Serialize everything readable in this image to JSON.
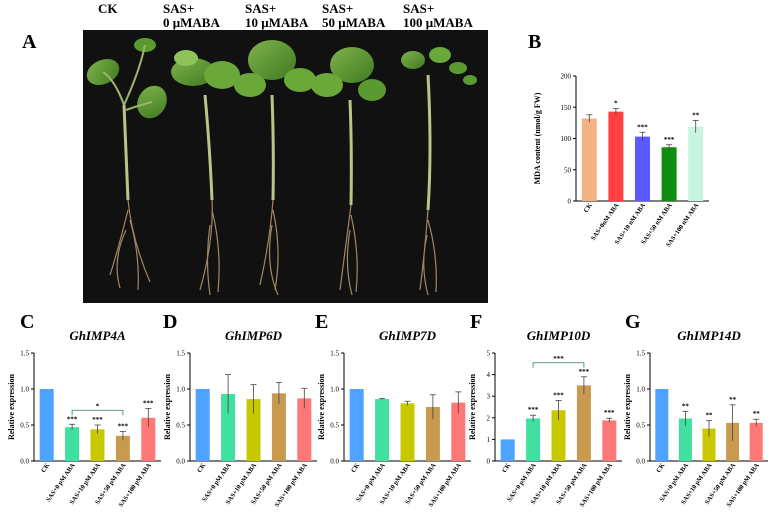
{
  "photo": {
    "labels": [
      "CK",
      "SAS+\n0 μMABA",
      "SAS+\n10 μMABA",
      "SAS+\n50 μMABA",
      "SAS+\n100 μMABA"
    ]
  },
  "colors": {
    "B": [
      "#f4b183",
      "#ff4040",
      "#5b5bff",
      "#108c10",
      "#c8f5e0"
    ],
    "C": [
      "#4da3ff",
      "#40e0a0",
      "#c8c800",
      "#c89a50",
      "#ff7878"
    ]
  },
  "chart_data": [
    {
      "panel": "A",
      "letter": "A",
      "type": "photo"
    },
    {
      "panel": "B",
      "letter": "B",
      "type": "bar",
      "title": "",
      "ylabel": "MDA content (nmol/g FW)",
      "ylim": [
        0,
        200
      ],
      "yticks": [
        0,
        50,
        100,
        150,
        200
      ],
      "categories": [
        "CK",
        "SAS+0nM ABA",
        "SAS+10 nM ABA",
        "SAS+50 nM ABA",
        "SAS+100 nM ABA"
      ],
      "values": [
        132,
        143,
        103,
        86,
        119
      ],
      "errors": [
        6,
        5,
        7,
        4,
        10
      ],
      "significance": [
        "",
        "*",
        "***",
        "***",
        "**"
      ]
    },
    {
      "panel": "C",
      "letter": "C",
      "type": "bar",
      "title": "GhIMP4A",
      "ylabel": "Relative expression",
      "ylim": [
        0,
        1.5
      ],
      "yticks": [
        0.0,
        0.5,
        1.0,
        1.5
      ],
      "tickdec": 1,
      "categories": [
        "CK",
        "SAS+0 pM ABA",
        "SAS+10 pM ABA",
        "SAS+50 pM ABA",
        "SAS+100 pM ABA"
      ],
      "values": [
        1.0,
        0.47,
        0.44,
        0.35,
        0.6
      ],
      "errors": [
        0,
        0.04,
        0.06,
        0.06,
        0.13
      ],
      "significance": [
        "",
        "***",
        "***",
        "***",
        "***"
      ],
      "bracket": {
        "from": 1,
        "to": 3,
        "label": "*"
      }
    },
    {
      "panel": "D",
      "letter": "D",
      "type": "bar",
      "title": "GhIMP6D",
      "ylabel": "Relative expression",
      "ylim": [
        0,
        1.5
      ],
      "yticks": [
        0.0,
        0.5,
        1.0,
        1.5
      ],
      "tickdec": 1,
      "categories": [
        "CK",
        "SAS+0 pM ABA",
        "SAS+10 pM ABA",
        "SAS+50 pM ABA",
        "SAS+100 pM ABA"
      ],
      "values": [
        1.0,
        0.93,
        0.86,
        0.94,
        0.87
      ],
      "errors": [
        0,
        0.27,
        0.2,
        0.15,
        0.14
      ],
      "significance": [
        "",
        "",
        "",
        "",
        ""
      ]
    },
    {
      "panel": "E",
      "letter": "E",
      "type": "bar",
      "title": "GhIMP7D",
      "ylabel": "Relative expression",
      "ylim": [
        0,
        1.5
      ],
      "yticks": [
        0.0,
        0.5,
        1.0,
        1.5
      ],
      "tickdec": 1,
      "categories": [
        "CK",
        "SAS+0 pM ABA",
        "SAS+10 pM ABA",
        "SAS+50 pM ABA",
        "SAS+100 pM ABA"
      ],
      "values": [
        1.0,
        0.86,
        0.8,
        0.75,
        0.81
      ],
      "errors": [
        0,
        0.01,
        0.03,
        0.17,
        0.15
      ],
      "significance": [
        "",
        "",
        "",
        "",
        ""
      ]
    },
    {
      "panel": "F",
      "letter": "F",
      "type": "bar",
      "title": "GhIMP10D",
      "ylabel": "Relative expression",
      "ylim": [
        0,
        5
      ],
      "yticks": [
        0,
        1,
        2,
        3,
        4,
        5
      ],
      "tickdec": 0,
      "categories": [
        "CK",
        "SAS+0 pM ABA",
        "SAS+10 pM ABA",
        "SAS+50 pM ABA",
        "SAS+100 pM ABA"
      ],
      "values": [
        1.0,
        1.97,
        2.35,
        3.5,
        1.88
      ],
      "errors": [
        0,
        0.15,
        0.45,
        0.4,
        0.1
      ],
      "significance": [
        "",
        "***",
        "***",
        "***",
        "***"
      ],
      "bracket": {
        "from": 1,
        "to": 3,
        "label": "***"
      }
    },
    {
      "panel": "G",
      "letter": "G",
      "type": "bar",
      "title": "GhIMP14D",
      "ylabel": "Relative expression",
      "ylim": [
        0,
        1.5
      ],
      "yticks": [
        0.0,
        0.5,
        1.0,
        1.5
      ],
      "tickdec": 1,
      "categories": [
        "CK",
        "SAS+0 pM ABA",
        "SAS+10 pM ABA",
        "SAS+50 pM ABA",
        "SAS+100 pM ABA"
      ],
      "values": [
        1.0,
        0.59,
        0.45,
        0.53,
        0.53
      ],
      "errors": [
        0,
        0.1,
        0.11,
        0.25,
        0.05
      ],
      "significance": [
        "",
        "**",
        "**",
        "**",
        "**"
      ]
    }
  ]
}
